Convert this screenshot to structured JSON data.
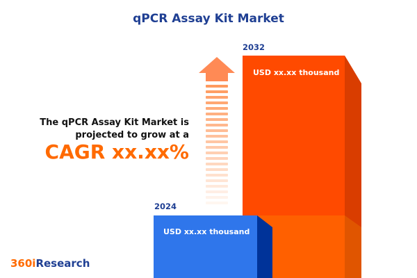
{
  "title": "qPCR Assay Kit Market",
  "description_line1": "The qPCR Assay Kit Market is",
  "description_line2": "projected to grow at a",
  "cagr": "CAGR xx.xx%",
  "bars": [
    {
      "year": "2024",
      "value": "USD xx.xx thousand",
      "color": "#2f76eb"
    },
    {
      "year": "2032",
      "value": "USD xx.xx thousand",
      "color": "#ff4a00"
    }
  ],
  "logo": {
    "part1": "360i",
    "part2": "Research",
    "color1": "#ff6a00",
    "color2": "#1f3f93"
  },
  "icons": [
    "growth-arrow-icon"
  ]
}
